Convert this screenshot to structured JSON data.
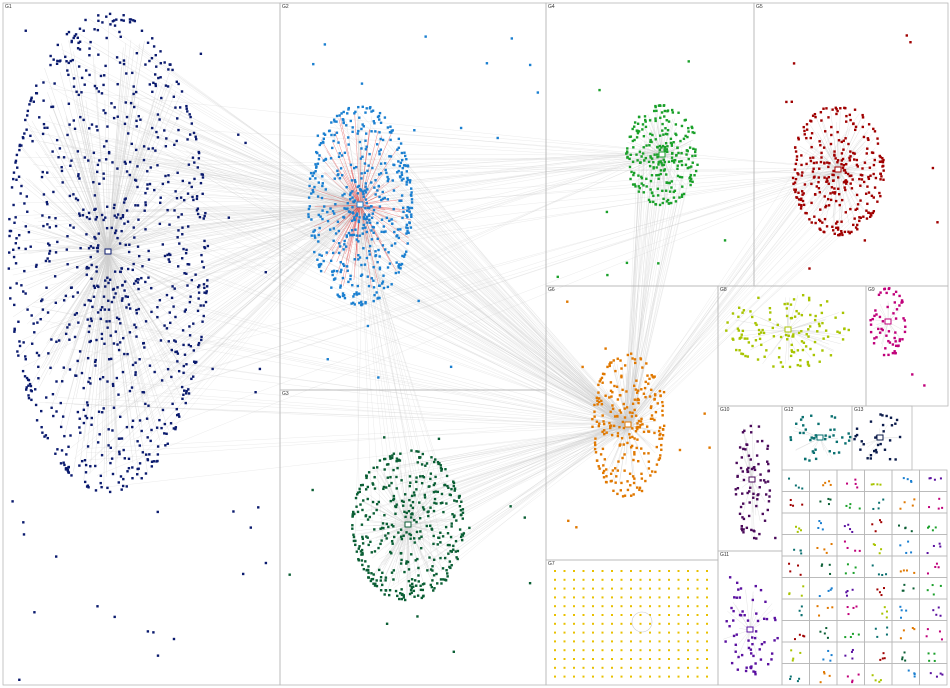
{
  "groups": [
    {
      "label": "G1"
    },
    {
      "label": "G2"
    },
    {
      "label": "G3"
    },
    {
      "label": "G4"
    },
    {
      "label": "G5"
    },
    {
      "label": "G6"
    },
    {
      "label": "G7"
    },
    {
      "label": "G8"
    },
    {
      "label": "G9"
    },
    {
      "label": "G10"
    },
    {
      "label": "G12"
    },
    {
      "label": "G13"
    },
    {
      "label": "G11"
    }
  ]
}
